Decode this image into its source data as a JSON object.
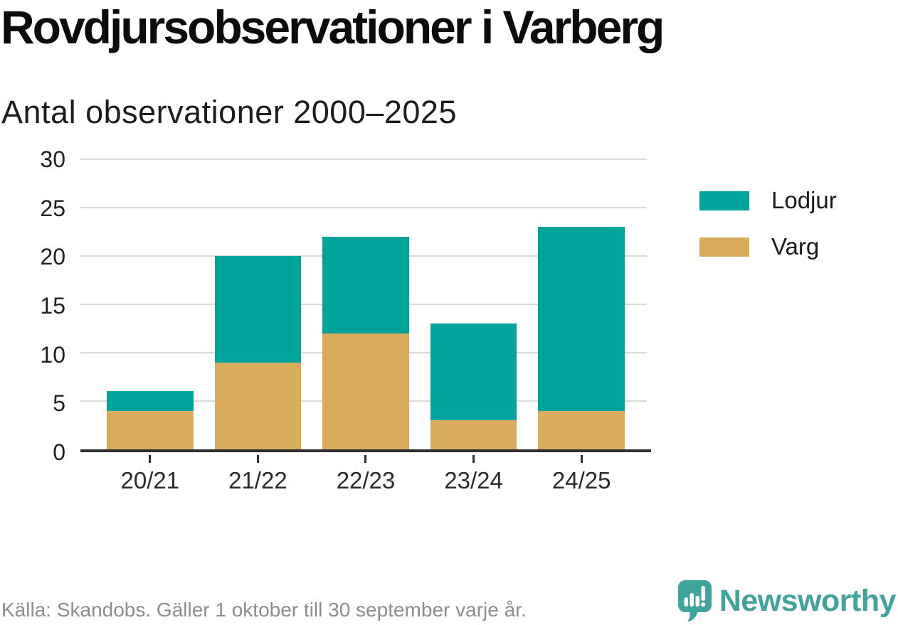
{
  "title": "Rovdjursobservationer i Varberg",
  "subtitle": "Antal observationer 2000–2025",
  "source": "Källa: Skandobs. Gäller 1 oktober till 30 september varje år.",
  "brand": {
    "name": "Newsworthy",
    "color": "#40a39c"
  },
  "colors": {
    "lodjur": "#00a49b",
    "varg": "#d9ac5b",
    "grid": "#d9d9d9",
    "axis": "#2e2e2e",
    "text": "#1a1a1a",
    "source_text": "#8c8c8c"
  },
  "legend": [
    {
      "label": "Lodjur",
      "color": "#00a49b"
    },
    {
      "label": "Varg",
      "color": "#d9ac5b"
    }
  ],
  "chart_data": {
    "type": "bar",
    "stacked": true,
    "title": "Rovdjursobservationer i Varberg",
    "subtitle": "Antal observationer 2000–2025",
    "categories": [
      "20/21",
      "21/22",
      "22/23",
      "23/24",
      "24/25"
    ],
    "series": [
      {
        "name": "Varg",
        "color": "#d9ac5b",
        "values": [
          4,
          9,
          12,
          3,
          4
        ]
      },
      {
        "name": "Lodjur",
        "color": "#00a49b",
        "values": [
          2,
          11,
          10,
          10,
          19
        ]
      }
    ],
    "totals": [
      6,
      20,
      22,
      13,
      23
    ],
    "xlabel": "",
    "ylabel": "",
    "ylim": [
      0,
      30
    ],
    "yticks": [
      0,
      5,
      10,
      15,
      20,
      25,
      30
    ],
    "grid": true,
    "legend_position": "right"
  }
}
